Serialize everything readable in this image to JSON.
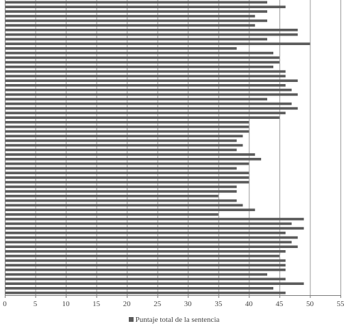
{
  "chart_data": {
    "type": "bar",
    "orientation": "horizontal",
    "title": "",
    "xlabel": "",
    "ylabel": "",
    "xlim": [
      0,
      55
    ],
    "x_ticks": [
      0,
      5,
      10,
      15,
      20,
      25,
      30,
      35,
      40,
      45,
      50,
      55
    ],
    "grid": "vertical",
    "legend_position": "bottom",
    "series": [
      {
        "name": "Puntaje total de la sentencia",
        "color": "#5b5b5b",
        "values": [
          43,
          46,
          43,
          41,
          43,
          41,
          48,
          48,
          43,
          50,
          38,
          44,
          45,
          45,
          44,
          46,
          46,
          48,
          46,
          47,
          48,
          43,
          47,
          48,
          46,
          45,
          40,
          40,
          40,
          39,
          38,
          39,
          38,
          41,
          42,
          40,
          38,
          40,
          40,
          40,
          38,
          38,
          35,
          38,
          39,
          41,
          35,
          49,
          47,
          49,
          46,
          48,
          47,
          48,
          46,
          45,
          46,
          46,
          46,
          43,
          46,
          49,
          44,
          46
        ]
      }
    ]
  },
  "legend": {
    "label": "Puntaje total de la sentencia"
  }
}
